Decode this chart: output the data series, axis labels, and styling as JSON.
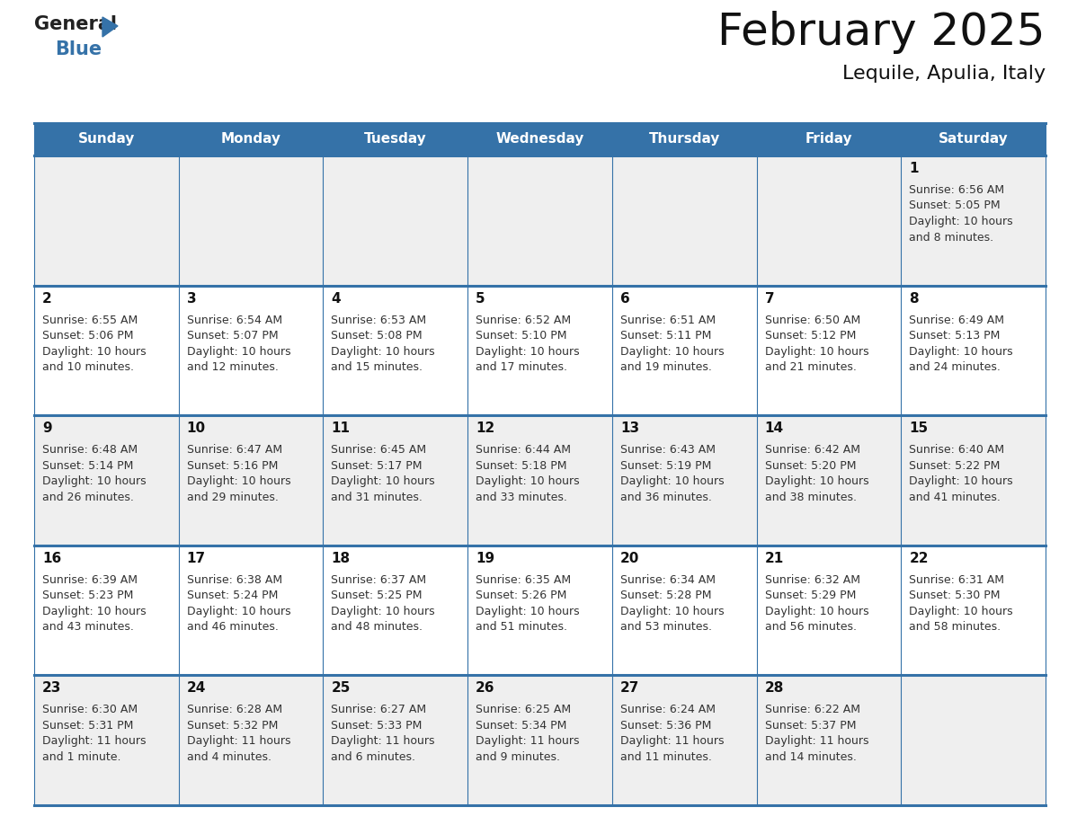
{
  "title": "February 2025",
  "subtitle": "Lequile, Apulia, Italy",
  "header_color": "#3572a8",
  "header_text_color": "#ffffff",
  "background_color": "#ffffff",
  "cell_bg_even": "#efefef",
  "cell_bg_odd": "#ffffff",
  "days_of_week": [
    "Sunday",
    "Monday",
    "Tuesday",
    "Wednesday",
    "Thursday",
    "Friday",
    "Saturday"
  ],
  "calendar_data": [
    [
      null,
      null,
      null,
      null,
      null,
      null,
      {
        "day": 1,
        "sunrise": "6:56 AM",
        "sunset": "5:05 PM",
        "daylight_h": "10 hours",
        "daylight_m": "and 8 minutes"
      }
    ],
    [
      {
        "day": 2,
        "sunrise": "6:55 AM",
        "sunset": "5:06 PM",
        "daylight_h": "10 hours",
        "daylight_m": "and 10 minutes"
      },
      {
        "day": 3,
        "sunrise": "6:54 AM",
        "sunset": "5:07 PM",
        "daylight_h": "10 hours",
        "daylight_m": "and 12 minutes"
      },
      {
        "day": 4,
        "sunrise": "6:53 AM",
        "sunset": "5:08 PM",
        "daylight_h": "10 hours",
        "daylight_m": "and 15 minutes"
      },
      {
        "day": 5,
        "sunrise": "6:52 AM",
        "sunset": "5:10 PM",
        "daylight_h": "10 hours",
        "daylight_m": "and 17 minutes"
      },
      {
        "day": 6,
        "sunrise": "6:51 AM",
        "sunset": "5:11 PM",
        "daylight_h": "10 hours",
        "daylight_m": "and 19 minutes"
      },
      {
        "day": 7,
        "sunrise": "6:50 AM",
        "sunset": "5:12 PM",
        "daylight_h": "10 hours",
        "daylight_m": "and 21 minutes"
      },
      {
        "day": 8,
        "sunrise": "6:49 AM",
        "sunset": "5:13 PM",
        "daylight_h": "10 hours",
        "daylight_m": "and 24 minutes"
      }
    ],
    [
      {
        "day": 9,
        "sunrise": "6:48 AM",
        "sunset": "5:14 PM",
        "daylight_h": "10 hours",
        "daylight_m": "and 26 minutes"
      },
      {
        "day": 10,
        "sunrise": "6:47 AM",
        "sunset": "5:16 PM",
        "daylight_h": "10 hours",
        "daylight_m": "and 29 minutes"
      },
      {
        "day": 11,
        "sunrise": "6:45 AM",
        "sunset": "5:17 PM",
        "daylight_h": "10 hours",
        "daylight_m": "and 31 minutes"
      },
      {
        "day": 12,
        "sunrise": "6:44 AM",
        "sunset": "5:18 PM",
        "daylight_h": "10 hours",
        "daylight_m": "and 33 minutes"
      },
      {
        "day": 13,
        "sunrise": "6:43 AM",
        "sunset": "5:19 PM",
        "daylight_h": "10 hours",
        "daylight_m": "and 36 minutes"
      },
      {
        "day": 14,
        "sunrise": "6:42 AM",
        "sunset": "5:20 PM",
        "daylight_h": "10 hours",
        "daylight_m": "and 38 minutes"
      },
      {
        "day": 15,
        "sunrise": "6:40 AM",
        "sunset": "5:22 PM",
        "daylight_h": "10 hours",
        "daylight_m": "and 41 minutes"
      }
    ],
    [
      {
        "day": 16,
        "sunrise": "6:39 AM",
        "sunset": "5:23 PM",
        "daylight_h": "10 hours",
        "daylight_m": "and 43 minutes"
      },
      {
        "day": 17,
        "sunrise": "6:38 AM",
        "sunset": "5:24 PM",
        "daylight_h": "10 hours",
        "daylight_m": "and 46 minutes"
      },
      {
        "day": 18,
        "sunrise": "6:37 AM",
        "sunset": "5:25 PM",
        "daylight_h": "10 hours",
        "daylight_m": "and 48 minutes"
      },
      {
        "day": 19,
        "sunrise": "6:35 AM",
        "sunset": "5:26 PM",
        "daylight_h": "10 hours",
        "daylight_m": "and 51 minutes"
      },
      {
        "day": 20,
        "sunrise": "6:34 AM",
        "sunset": "5:28 PM",
        "daylight_h": "10 hours",
        "daylight_m": "and 53 minutes"
      },
      {
        "day": 21,
        "sunrise": "6:32 AM",
        "sunset": "5:29 PM",
        "daylight_h": "10 hours",
        "daylight_m": "and 56 minutes"
      },
      {
        "day": 22,
        "sunrise": "6:31 AM",
        "sunset": "5:30 PM",
        "daylight_h": "10 hours",
        "daylight_m": "and 58 minutes"
      }
    ],
    [
      {
        "day": 23,
        "sunrise": "6:30 AM",
        "sunset": "5:31 PM",
        "daylight_h": "11 hours",
        "daylight_m": "and 1 minute"
      },
      {
        "day": 24,
        "sunrise": "6:28 AM",
        "sunset": "5:32 PM",
        "daylight_h": "11 hours",
        "daylight_m": "and 4 minutes"
      },
      {
        "day": 25,
        "sunrise": "6:27 AM",
        "sunset": "5:33 PM",
        "daylight_h": "11 hours",
        "daylight_m": "and 6 minutes"
      },
      {
        "day": 26,
        "sunrise": "6:25 AM",
        "sunset": "5:34 PM",
        "daylight_h": "11 hours",
        "daylight_m": "and 9 minutes"
      },
      {
        "day": 27,
        "sunrise": "6:24 AM",
        "sunset": "5:36 PM",
        "daylight_h": "11 hours",
        "daylight_m": "and 11 minutes"
      },
      {
        "day": 28,
        "sunrise": "6:22 AM",
        "sunset": "5:37 PM",
        "daylight_h": "11 hours",
        "daylight_m": "and 14 minutes"
      },
      null
    ]
  ],
  "line_color": "#3572a8",
  "text_color": "#333333",
  "day_number_color": "#111111",
  "title_fontsize": 36,
  "subtitle_fontsize": 16,
  "header_fontsize": 11,
  "day_num_fontsize": 11,
  "cell_text_fontsize": 9
}
